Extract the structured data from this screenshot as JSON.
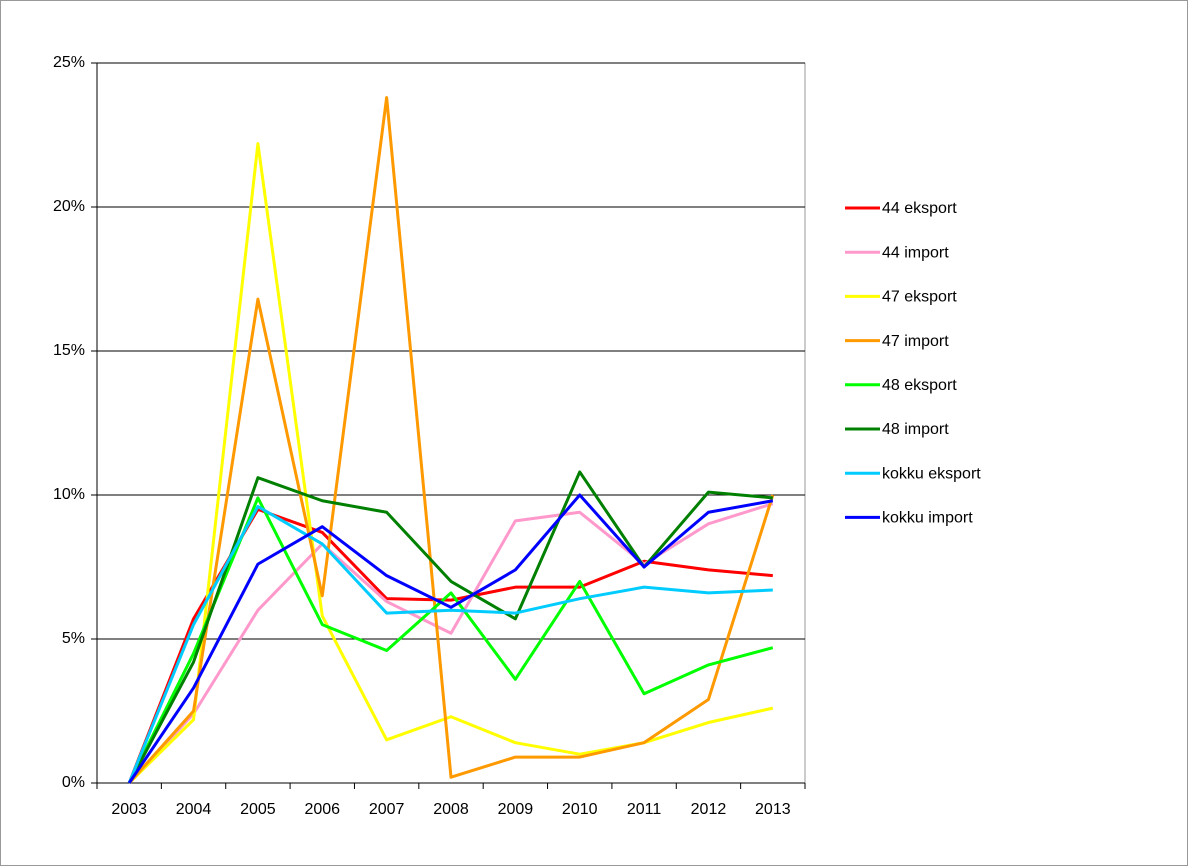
{
  "chart_data": {
    "type": "line",
    "categories": [
      "2003",
      "2004",
      "2005",
      "2006",
      "2007",
      "2008",
      "2009",
      "2010",
      "2011",
      "2012",
      "2013"
    ],
    "series": [
      {
        "name": "44 eksport",
        "color": "#ff0000",
        "values": [
          0,
          5.7,
          9.5,
          8.7,
          6.4,
          6.35,
          6.8,
          6.8,
          7.7,
          7.4,
          7.2
        ]
      },
      {
        "name": "44 import",
        "color": "#ff99cc",
        "values": [
          0,
          2.4,
          6.0,
          8.3,
          6.3,
          5.2,
          9.1,
          9.4,
          7.6,
          9.0,
          9.7
        ]
      },
      {
        "name": "47 eksport",
        "color": "#ffff00",
        "values": [
          0,
          2.2,
          22.2,
          5.8,
          1.5,
          2.3,
          1.4,
          1.0,
          1.4,
          2.1,
          2.6
        ]
      },
      {
        "name": "47 import",
        "color": "#ff9900",
        "values": [
          0,
          2.5,
          16.8,
          6.5,
          23.8,
          0.2,
          0.9,
          0.9,
          1.4,
          2.9,
          10.0
        ]
      },
      {
        "name": "48 eksport",
        "color": "#00ff00",
        "values": [
          0,
          4.5,
          9.9,
          5.5,
          4.6,
          6.6,
          3.6,
          7.0,
          3.1,
          4.1,
          4.7
        ]
      },
      {
        "name": "48 import",
        "color": "#008000",
        "values": [
          0,
          4.2,
          10.6,
          9.8,
          9.4,
          7.0,
          5.7,
          10.8,
          7.5,
          10.1,
          9.9
        ]
      },
      {
        "name": "kokku eksport",
        "color": "#00ccff",
        "values": [
          0,
          5.5,
          9.6,
          8.3,
          5.9,
          6.0,
          5.9,
          6.4,
          6.8,
          6.6,
          6.7
        ]
      },
      {
        "name": "kokku import",
        "color": "#0000ff",
        "values": [
          0,
          3.3,
          7.6,
          8.9,
          7.2,
          6.1,
          7.4,
          10.0,
          7.5,
          9.4,
          9.8
        ]
      }
    ],
    "ylim": [
      0,
      25
    ],
    "yticks": [
      {
        "value": 0,
        "label": "0%"
      },
      {
        "value": 5,
        "label": "5%"
      },
      {
        "value": 10,
        "label": "10%"
      },
      {
        "value": 15,
        "label": "15%"
      },
      {
        "value": 20,
        "label": "20%"
      },
      {
        "value": 25,
        "label": "25%"
      }
    ],
    "grid": true,
    "legend": "right"
  }
}
